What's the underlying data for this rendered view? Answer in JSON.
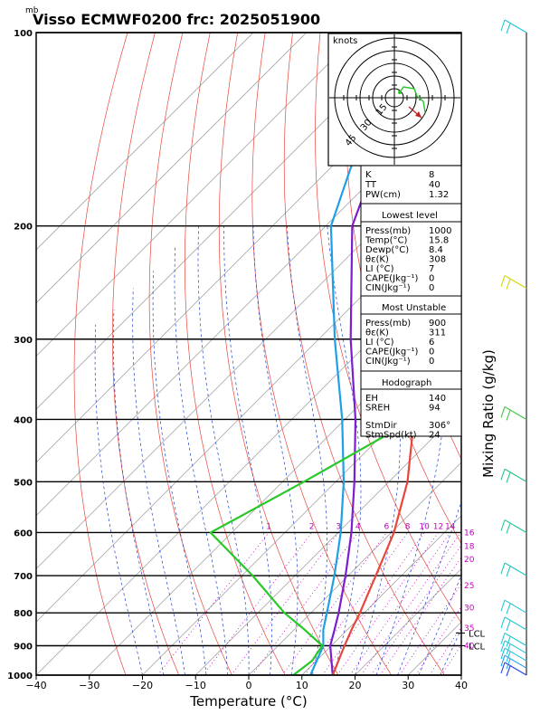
{
  "header": {
    "mb_label": "mb",
    "title": "Visso ECMWF0200  frc: 2025051900"
  },
  "colors": {
    "temperature": "#e8463c",
    "dewpoint": "#28c828",
    "parcel": "#7a1fd0",
    "wetbulb": "#1ea0e6",
    "isotherm": "#999999",
    "dry_adiabat": "#e8463c",
    "moist_adiabat": "#2040d0",
    "mixing_ratio": "#c000c0",
    "wind_barb": "#20c8d8"
  },
  "chart_data": {
    "type": "line",
    "title": "Visso ECMWF0200  frc: 2025051900",
    "xlabel": "Temperature (°C)",
    "ylabel": "mb",
    "right_label": "Mixing Ratio  (g/kg)",
    "xlim": [
      -40,
      40
    ],
    "ylim": [
      1000,
      100
    ],
    "y_scale": "log",
    "x_ticks": [
      -40,
      -30,
      -20,
      -10,
      0,
      10,
      20,
      30,
      40
    ],
    "pressure_levels": [
      1000,
      900,
      800,
      700,
      600,
      500,
      400,
      300,
      200,
      100
    ],
    "series": [
      {
        "name": "Temperature",
        "points": [
          [
            1000,
            15.8
          ],
          [
            900,
            12.5
          ],
          [
            850,
            10.8
          ],
          [
            800,
            9.2
          ],
          [
            700,
            5.2
          ],
          [
            600,
            0.5
          ],
          [
            500,
            -6.5
          ],
          [
            400,
            -17
          ],
          [
            300,
            -31
          ],
          [
            250,
            -38
          ],
          [
            200,
            -36
          ],
          [
            150,
            -33
          ],
          [
            100,
            -30
          ]
        ]
      },
      {
        "name": "Dewpoint",
        "points": [
          [
            1000,
            8.4
          ],
          [
            950,
            9.2
          ],
          [
            900,
            8.3
          ],
          [
            850,
            2
          ],
          [
            800,
            -5
          ],
          [
            700,
            -18
          ],
          [
            600,
            -34
          ],
          [
            500,
            -26
          ],
          [
            400,
            -17
          ],
          [
            300,
            -20
          ],
          [
            250,
            -22
          ],
          [
            200,
            -21
          ],
          [
            150,
            -19
          ],
          [
            100,
            -16
          ]
        ]
      },
      {
        "name": "Parcel",
        "points": [
          [
            1000,
            15.8
          ],
          [
            900,
            9.8
          ],
          [
            850,
            7.6
          ],
          [
            800,
            5.2
          ],
          [
            700,
            -0.5
          ],
          [
            600,
            -7.5
          ],
          [
            500,
            -16.5
          ],
          [
            400,
            -28
          ],
          [
            300,
            -44
          ],
          [
            200,
            -65
          ],
          [
            100,
            -88
          ]
        ]
      },
      {
        "name": "Wet bulb",
        "points": [
          [
            1000,
            11.6
          ],
          [
            900,
            8.5
          ],
          [
            850,
            5.5
          ],
          [
            800,
            3.0
          ],
          [
            700,
            -2.6
          ],
          [
            600,
            -9.5
          ],
          [
            500,
            -18.5
          ],
          [
            400,
            -30.5
          ],
          [
            300,
            -47
          ],
          [
            200,
            -69
          ],
          [
            100,
            -93
          ]
        ]
      }
    ],
    "mixing_ratio_lines": [
      {
        "w": 1,
        "label": "1"
      },
      {
        "w": 2,
        "label": "2"
      },
      {
        "w": 3,
        "label": "3"
      },
      {
        "w": 4,
        "label": "4"
      },
      {
        "w": 6,
        "label": "6"
      },
      {
        "w": 8,
        "label": "8"
      },
      {
        "w": 10,
        "label": "10"
      },
      {
        "w": 12,
        "label": "12"
      },
      {
        "w": 14,
        "label": "14"
      },
      {
        "w": 16,
        "label": "16"
      },
      {
        "w": 18,
        "label": "18"
      },
      {
        "w": 20,
        "label": "20"
      },
      {
        "w": 25,
        "label": "25"
      },
      {
        "w": 30,
        "label": "30"
      },
      {
        "w": 35,
        "label": "35"
      },
      {
        "w": 40,
        "label": "40"
      }
    ],
    "levels_marked": [
      {
        "name": "LCL",
        "pressure": 860,
        "label": "LCL"
      },
      {
        "name": "LCL2",
        "pressure": 900,
        "label": "LCL"
      }
    ],
    "wind_barbs": [
      {
        "pressure": 1000,
        "color": "#2040f0"
      },
      {
        "pressure": 975,
        "color": "#20a0f0"
      },
      {
        "pressure": 950,
        "color": "#20c0e0"
      },
      {
        "pressure": 925,
        "color": "#20c8d8"
      },
      {
        "pressure": 900,
        "color": "#20c8d8"
      },
      {
        "pressure": 850,
        "color": "#20c8d8"
      },
      {
        "pressure": 800,
        "color": "#20c8d8"
      },
      {
        "pressure": 700,
        "color": "#20c8c0"
      },
      {
        "pressure": 600,
        "color": "#20c8a0"
      },
      {
        "pressure": 500,
        "color": "#20c880"
      },
      {
        "pressure": 400,
        "color": "#40c840"
      },
      {
        "pressure": 250,
        "color": "#d0d800"
      },
      {
        "pressure": 100,
        "color": "#20c8d8"
      }
    ],
    "hodograph": {
      "label": "knots",
      "ring_labels": [
        "15",
        "30",
        "45"
      ]
    }
  },
  "indices": {
    "top": [
      {
        "label": "K",
        "value": "8"
      },
      {
        "label": "TT",
        "value": "40"
      },
      {
        "label": "PW(cm)",
        "value": "1.32"
      }
    ],
    "lowest": {
      "header": "Lowest level",
      "rows": [
        {
          "label": "Press(mb)",
          "value": "1000"
        },
        {
          "label": "Temp(°C)",
          "value": "15.8"
        },
        {
          "label": "Dewp(°C)",
          "value": "8.4"
        },
        {
          "label": "θε(K)",
          "value": "308"
        },
        {
          "label": "LI (°C)",
          "value": "7"
        },
        {
          "label": "CAPE(Jkg⁻¹)",
          "value": "0"
        },
        {
          "label": "CIN(Jkg⁻¹)",
          "value": "0"
        }
      ]
    },
    "unstable": {
      "header": "Most Unstable",
      "rows": [
        {
          "label": "Press(mb)",
          "value": "900"
        },
        {
          "label": "θε(K)",
          "value": "311"
        },
        {
          "label": "LI (°C)",
          "value": "6"
        },
        {
          "label": "CAPE(Jkg⁻¹)",
          "value": "0"
        },
        {
          "label": "CIN(Jkg⁻¹)",
          "value": "0"
        }
      ]
    },
    "hodograph": {
      "header": "Hodograph",
      "rows": [
        {
          "label": "EH",
          "value": "140"
        },
        {
          "label": "SREH",
          "value": "94"
        },
        {
          "label": "StmDir",
          "value": "306°"
        },
        {
          "label": "StmSpd(kt)",
          "value": "24"
        }
      ]
    }
  }
}
